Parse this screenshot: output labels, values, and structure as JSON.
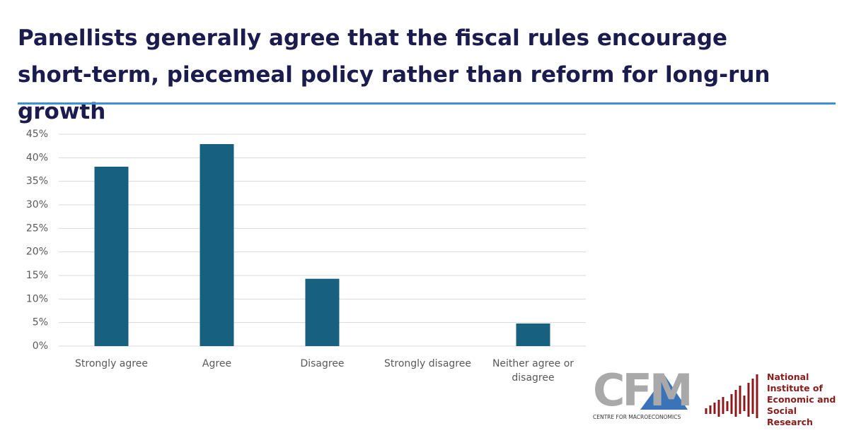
{
  "chart_data": {
    "type": "bar",
    "title": "Panellists generally agree that the fiscal rules encourage short-term, piecemeal policy rather than reform for long-run growth",
    "categories": [
      "Strongly agree",
      "Agree",
      "Disagree",
      "Strongly disagree",
      "Neither agree or disagree"
    ],
    "values": [
      38.1,
      42.9,
      14.3,
      0,
      4.8
    ],
    "color": "#17607f",
    "ylim": [
      0,
      45
    ],
    "yticks": [
      {
        "value": 0,
        "label": "0%"
      },
      {
        "value": 5,
        "label": "5%"
      },
      {
        "value": 10,
        "label": "10%"
      },
      {
        "value": 15,
        "label": "15%"
      },
      {
        "value": 20,
        "label": "20%"
      },
      {
        "value": 25,
        "label": "25%"
      },
      {
        "value": 30,
        "label": "30%"
      },
      {
        "value": 35,
        "label": "35%"
      },
      {
        "value": 40,
        "label": "40%"
      },
      {
        "value": 45,
        "label": "45%"
      }
    ],
    "grid": true
  },
  "logos": {
    "cfm": {
      "mark": "CFM",
      "name": "CENTRE FOR MACROECONOMICS"
    },
    "niesr": "National Institute of Economic and Social Research"
  }
}
